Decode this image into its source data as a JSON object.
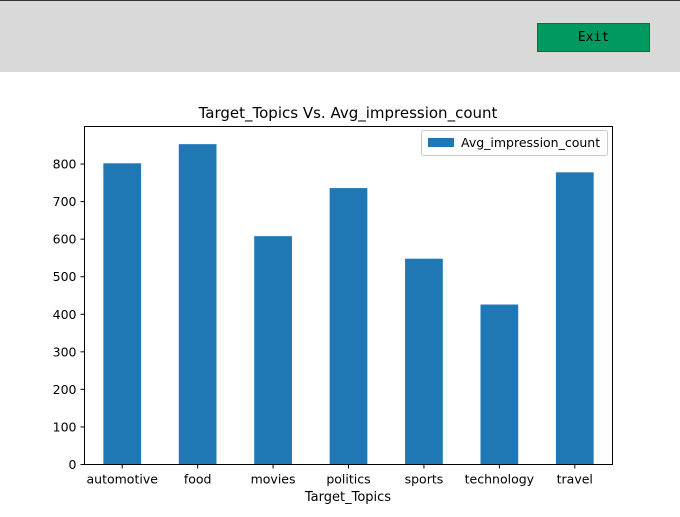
{
  "toolbar": {
    "exit_label": "Exit",
    "exit_color": "#009960",
    "background": "#d9d9d9"
  },
  "chart_data": {
    "type": "bar",
    "title": "Target_Topics Vs. Avg_impression_count",
    "xlabel": "Target_Topics",
    "ylabel": "",
    "categories": [
      "automotive",
      "food",
      "movies",
      "politics",
      "sports",
      "technology",
      "travel"
    ],
    "series": [
      {
        "name": "Avg_impression_count",
        "values": [
          802,
          853,
          608,
          736,
          548,
          426,
          778
        ],
        "color": "#1f77b4"
      }
    ],
    "ylim": [
      0,
      900
    ],
    "yticks": [
      0,
      100,
      200,
      300,
      400,
      500,
      600,
      700,
      800
    ],
    "grid": false,
    "legend_position": "top-right"
  }
}
